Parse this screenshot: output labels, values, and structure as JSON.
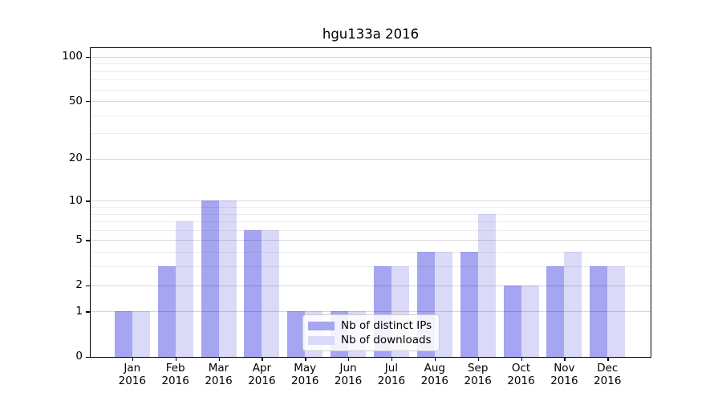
{
  "figure": {
    "background": "#ffffff"
  },
  "chart_data": {
    "type": "bar",
    "title": "hgu133a 2016",
    "year": "2016",
    "months": [
      "Jan",
      "Feb",
      "Mar",
      "Apr",
      "May",
      "Jun",
      "Jul",
      "Aug",
      "Sep",
      "Oct",
      "Nov",
      "Dec"
    ],
    "series": [
      {
        "name": "Nb of distinct IPs",
        "color": "#a5a5f2",
        "values": [
          1,
          3,
          10,
          6,
          1,
          1,
          3,
          4,
          4,
          2,
          3,
          3
        ]
      },
      {
        "name": "Nb of downloads",
        "color": "#dadaf8",
        "values": [
          1,
          7,
          10,
          6,
          1,
          1,
          3,
          4,
          8,
          2,
          4,
          3
        ]
      }
    ],
    "yscale": "log1p",
    "ylim": [
      0,
      114
    ],
    "yticks": [
      0,
      1,
      2,
      5,
      10,
      20,
      50,
      100
    ],
    "yticks_minor": [
      3,
      4,
      6,
      7,
      8,
      9,
      30,
      40,
      60,
      70,
      80,
      90
    ],
    "grid": true,
    "legend_position": "lower center",
    "colors": {
      "axis": "#000000",
      "grid_major": "rgba(0,0,0,0.16)",
      "grid_minor": "rgba(0,0,0,0.07)",
      "text": "#000000"
    }
  }
}
